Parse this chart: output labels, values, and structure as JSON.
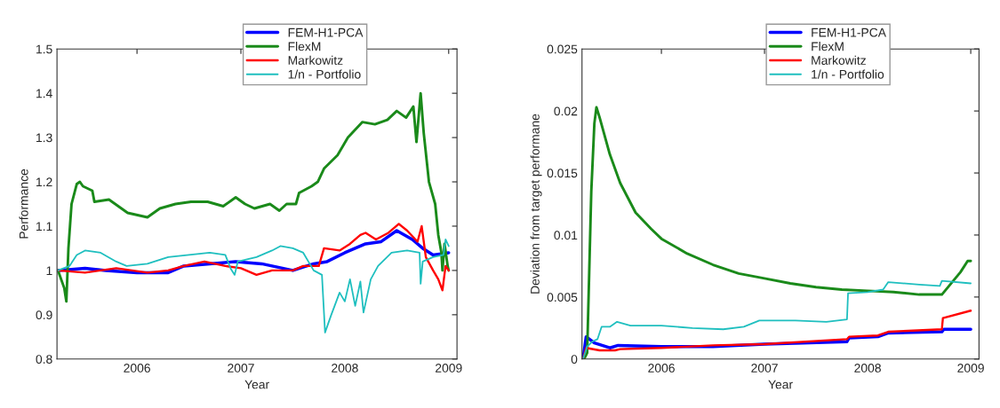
{
  "chart_data": [
    {
      "type": "line",
      "xlabel": "Year",
      "ylabel": "Performance",
      "xlim": [
        2005.23,
        2009.08
      ],
      "xticks": [
        2006,
        2007,
        2008,
        2009
      ],
      "ylim": [
        0.8,
        1.5
      ],
      "yticks": [
        0.8,
        0.9,
        1,
        1.1,
        1.2,
        1.3,
        1.4,
        1.5
      ],
      "legend": "top",
      "series": [
        {
          "name": "FEM-H1-PCA",
          "color": "#0000ff",
          "x": [
            2005.24,
            2005.5,
            2005.7,
            2006.0,
            2006.3,
            2006.45,
            2006.7,
            2006.95,
            2007.2,
            2007.5,
            2007.7,
            2007.83,
            2008.0,
            2008.2,
            2008.35,
            2008.5,
            2008.65,
            2008.75,
            2008.85,
            2009.0
          ],
          "values": [
            1.0,
            1.005,
            1.0,
            0.995,
            0.995,
            1.01,
            1.015,
            1.02,
            1.015,
            1.0,
            1.015,
            1.02,
            1.04,
            1.06,
            1.065,
            1.09,
            1.07,
            1.05,
            1.035,
            1.04
          ]
        },
        {
          "name": "FlexM",
          "color": "#1a8a1a",
          "x": [
            2005.24,
            2005.3,
            2005.32,
            2005.34,
            2005.37,
            2005.42,
            2005.45,
            2005.48,
            2005.57,
            2005.59,
            2005.73,
            2005.85,
            2005.91,
            2006.1,
            2006.22,
            2006.37,
            2006.52,
            2006.68,
            2006.83,
            2006.95,
            2007.04,
            2007.13,
            2007.28,
            2007.37,
            2007.44,
            2007.53,
            2007.56,
            2007.68,
            2007.74,
            2007.8,
            2007.93,
            2008.03,
            2008.17,
            2008.29,
            2008.41,
            2008.5,
            2008.59,
            2008.66,
            2008.69,
            2008.73,
            2008.76,
            2008.81,
            2008.87,
            2008.9,
            2008.93,
            2008.94,
            2008.96,
            2008.99,
            2009.0
          ],
          "values": [
            1.0,
            0.96,
            0.93,
            1.05,
            1.15,
            1.195,
            1.2,
            1.19,
            1.18,
            1.155,
            1.16,
            1.14,
            1.13,
            1.12,
            1.14,
            1.15,
            1.155,
            1.155,
            1.145,
            1.165,
            1.15,
            1.14,
            1.15,
            1.135,
            1.15,
            1.15,
            1.175,
            1.19,
            1.2,
            1.23,
            1.26,
            1.3,
            1.335,
            1.33,
            1.34,
            1.36,
            1.345,
            1.37,
            1.29,
            1.4,
            1.31,
            1.2,
            1.15,
            1.08,
            1.04,
            1.0,
            1.06,
            1.01,
            1.0
          ]
        },
        {
          "name": "Markowitz",
          "color": "#ff0000",
          "x": [
            2005.24,
            2005.5,
            2005.8,
            2006.1,
            2006.3,
            2006.45,
            2006.65,
            2006.85,
            2007.0,
            2007.15,
            2007.3,
            2007.5,
            2007.6,
            2007.75,
            2007.8,
            2007.95,
            2008.05,
            2008.15,
            2008.2,
            2008.3,
            2008.42,
            2008.52,
            2008.6,
            2008.7,
            2008.74,
            2008.78,
            2008.85,
            2008.9,
            2008.94,
            2008.97,
            2009.0
          ],
          "values": [
            1.0,
            0.995,
            1.005,
            0.995,
            1.0,
            1.01,
            1.02,
            1.01,
            1.005,
            0.99,
            1.0,
            1.0,
            1.01,
            1.01,
            1.05,
            1.045,
            1.06,
            1.08,
            1.085,
            1.07,
            1.085,
            1.105,
            1.09,
            1.065,
            1.1,
            1.03,
            1.0,
            0.98,
            0.955,
            1.01,
            1.0
          ]
        },
        {
          "name": "1/n - Portfolio",
          "color": "#1fbfbf",
          "x": [
            2005.24,
            2005.35,
            2005.42,
            2005.5,
            2005.65,
            2005.8,
            2005.9,
            2006.1,
            2006.3,
            2006.5,
            2006.7,
            2006.85,
            2006.9,
            2006.94,
            2006.97,
            2007.15,
            2007.3,
            2007.38,
            2007.5,
            2007.6,
            2007.7,
            2007.78,
            2007.81,
            2007.87,
            2007.95,
            2008.0,
            2008.05,
            2008.1,
            2008.15,
            2008.18,
            2008.25,
            2008.32,
            2008.45,
            2008.6,
            2008.72,
            2008.73,
            2008.75,
            2008.85,
            2008.95,
            2008.97,
            2009.0
          ],
          "values": [
            1.0,
            1.01,
            1.035,
            1.045,
            1.04,
            1.02,
            1.01,
            1.015,
            1.03,
            1.035,
            1.04,
            1.035,
            1.005,
            0.99,
            1.02,
            1.03,
            1.045,
            1.055,
            1.05,
            1.04,
            1.0,
            0.99,
            0.86,
            0.9,
            0.95,
            0.93,
            0.98,
            0.92,
            0.975,
            0.905,
            0.98,
            1.01,
            1.04,
            1.045,
            1.04,
            0.97,
            1.02,
            1.03,
            1.035,
            1.07,
            1.055
          ]
        }
      ]
    },
    {
      "type": "line",
      "xlabel": "Year",
      "ylabel": "Deviation from target performane",
      "xlim": [
        2005.23,
        2009.08
      ],
      "xticks": [
        2006,
        2007,
        2008,
        2009
      ],
      "ylim": [
        0,
        0.025
      ],
      "yticks": [
        0,
        0.005,
        0.01,
        0.015,
        0.02,
        0.025
      ],
      "legend": "top",
      "series": [
        {
          "name": "FEM-H1-PCA",
          "color": "#0000ff",
          "x": [
            2005.24,
            2005.27,
            2005.35,
            2005.5,
            2005.58,
            2006.0,
            2006.5,
            2007.0,
            2007.8,
            2007.82,
            2008.1,
            2008.2,
            2008.72,
            2008.74,
            2009.0
          ],
          "values": [
            0,
            0.0018,
            0.0013,
            0.0009,
            0.0011,
            0.001,
            0.001,
            0.0012,
            0.0014,
            0.0017,
            0.0018,
            0.0021,
            0.0022,
            0.0024,
            0.0024
          ]
        },
        {
          "name": "FlexM",
          "color": "#1a8a1a",
          "x": [
            2005.25,
            2005.28,
            2005.3,
            2005.32,
            2005.35,
            2005.37,
            2005.4,
            2005.5,
            2005.6,
            2005.75,
            2005.9,
            2006.0,
            2006.25,
            2006.5,
            2006.75,
            2007.0,
            2007.25,
            2007.5,
            2007.75,
            2008.0,
            2008.25,
            2008.5,
            2008.72,
            2008.8,
            2008.9,
            2008.97,
            2009.0
          ],
          "values": [
            0,
            0.0005,
            0.007,
            0.0135,
            0.019,
            0.0203,
            0.0195,
            0.0165,
            0.0142,
            0.0118,
            0.0105,
            0.0097,
            0.0085,
            0.0076,
            0.0069,
            0.0065,
            0.0061,
            0.0058,
            0.0056,
            0.0055,
            0.0054,
            0.0052,
            0.0052,
            0.006,
            0.007,
            0.0079,
            0.0079
          ]
        },
        {
          "name": "Markowitz",
          "color": "#ff0000",
          "x": [
            2005.24,
            2005.27,
            2005.4,
            2005.55,
            2005.6,
            2006.0,
            2006.5,
            2007.0,
            2007.8,
            2007.82,
            2008.1,
            2008.2,
            2008.72,
            2008.73,
            2009.0
          ],
          "values": [
            0,
            0.0009,
            0.0007,
            0.0007,
            0.0008,
            0.0009,
            0.0011,
            0.0012,
            0.0016,
            0.0018,
            0.0019,
            0.0022,
            0.0024,
            0.0033,
            0.0039
          ]
        },
        {
          "name": "1/n - Portfolio",
          "color": "#1fbfbf",
          "x": [
            2005.24,
            2005.28,
            2005.33,
            2005.38,
            2005.42,
            2005.5,
            2005.57,
            2005.7,
            2006.0,
            2006.3,
            2006.6,
            2006.8,
            2006.95,
            2007.3,
            2007.6,
            2007.8,
            2007.81,
            2008.0,
            2008.15,
            2008.2,
            2008.5,
            2008.7,
            2008.72,
            2009.0
          ],
          "values": [
            0,
            0.001,
            0.0014,
            0.0016,
            0.0026,
            0.0026,
            0.003,
            0.0027,
            0.0027,
            0.0025,
            0.0024,
            0.0026,
            0.0031,
            0.0031,
            0.003,
            0.0032,
            0.0053,
            0.0054,
            0.0056,
            0.0062,
            0.006,
            0.0059,
            0.0063,
            0.0061
          ]
        }
      ]
    }
  ]
}
